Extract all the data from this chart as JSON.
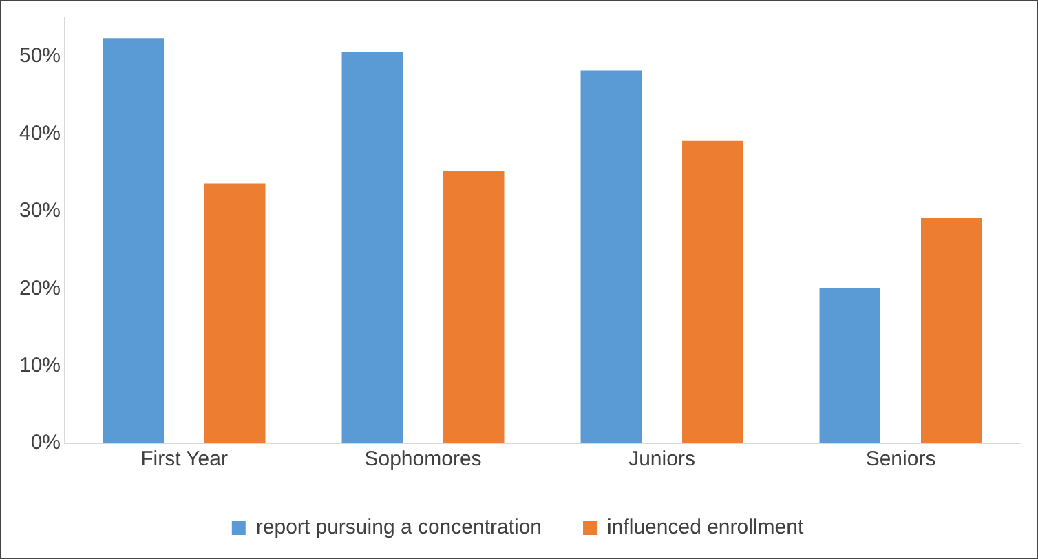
{
  "chart_data": {
    "type": "bar",
    "categories": [
      "First Year",
      "Sophomores",
      "Juniors",
      "Seniors"
    ],
    "series": [
      {
        "name": "report pursuing a concentration",
        "color": "#5b9bd5",
        "values": [
          52.4,
          50.6,
          48.2,
          20.1
        ]
      },
      {
        "name": "influenced enrollment",
        "color": "#ed7d31",
        "values": [
          33.6,
          35.2,
          39.1,
          29.2
        ]
      }
    ],
    "ylim": [
      0,
      55
    ],
    "yticks": [
      {
        "value": 0,
        "label": "0%"
      },
      {
        "value": 10,
        "label": "10%"
      },
      {
        "value": 20,
        "label": "20%"
      },
      {
        "value": 30,
        "label": "30%"
      },
      {
        "value": 40,
        "label": "40%"
      },
      {
        "value": 50,
        "label": "50%"
      }
    ],
    "grid": false,
    "legend": "bottom"
  }
}
